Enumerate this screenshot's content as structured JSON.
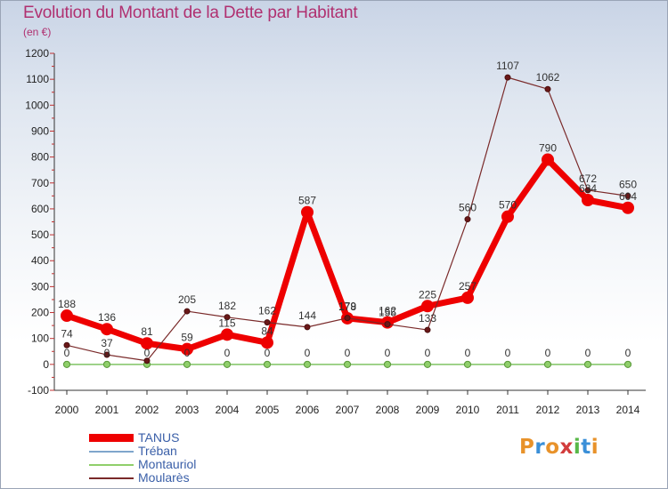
{
  "title": "Evolution du Montant de la Dette par Habitant",
  "subtitle": "(en €)",
  "logo": {
    "text": "Proxiti",
    "letters": [
      "P",
      "r",
      "o",
      "x",
      "i",
      "t",
      "i"
    ],
    "colors": [
      "#e8922a",
      "#3a8fd8",
      "#e8922a",
      "#d23c3c",
      "#58b848",
      "#3a8fd8",
      "#e8922a"
    ]
  },
  "chart_data": {
    "type": "line",
    "title": "Evolution du Montant de la Dette par Habitant",
    "subtitle": "(en €)",
    "categories": [
      "2000",
      "2001",
      "2002",
      "2003",
      "2004",
      "2005",
      "2006",
      "2007",
      "2008",
      "2009",
      "2010",
      "2011",
      "2012",
      "2013",
      "2014"
    ],
    "ylim": [
      -100,
      1200
    ],
    "yticks": [
      -100,
      0,
      100,
      200,
      300,
      400,
      500,
      600,
      700,
      800,
      900,
      1000,
      1100,
      1200
    ],
    "grid": false,
    "legend_position": "bottom-left",
    "series": [
      {
        "name": "TANUS",
        "color": "#ee0000",
        "values": [
          188,
          136,
          81,
          59,
          115,
          84,
          587,
          178,
          162,
          225,
          257,
          570,
          790,
          634,
          604
        ],
        "labels": [
          "188",
          "136",
          "81",
          "59",
          "115",
          "84",
          "587",
          "178",
          "162",
          "225",
          "257",
          "570",
          "790",
          "634",
          "604"
        ]
      },
      {
        "name": "Tréban",
        "color": "#7fa6cc",
        "values": [
          0,
          0,
          0,
          0,
          0,
          0,
          0,
          0,
          0,
          0,
          0,
          0,
          0,
          0,
          0
        ],
        "labels": [
          "0",
          "0",
          "0",
          "0",
          "0",
          "0",
          "0",
          "0",
          "0",
          "0",
          "0",
          "0",
          "0",
          "0",
          "0"
        ]
      },
      {
        "name": "Montauriol",
        "color": "#8fcf6a",
        "values": [
          0,
          0,
          0,
          0,
          0,
          0,
          0,
          0,
          0,
          0,
          0,
          0,
          0,
          0,
          0
        ],
        "labels": [
          "",
          "",
          "",
          "",
          "",
          "",
          "",
          "",
          "",
          "",
          "",
          "",
          "",
          "",
          ""
        ]
      },
      {
        "name": "Moularès",
        "color": "#7a2a2a",
        "values": [
          74,
          37,
          14,
          205,
          182,
          162,
          144,
          179,
          155,
          133,
          560,
          1107,
          1062,
          672,
          650
        ],
        "labels": [
          "74",
          "37",
          "",
          "205",
          "182",
          "162",
          "144",
          "179",
          "155",
          "133",
          "560",
          "1107",
          "1062",
          "672",
          "650"
        ]
      }
    ]
  }
}
